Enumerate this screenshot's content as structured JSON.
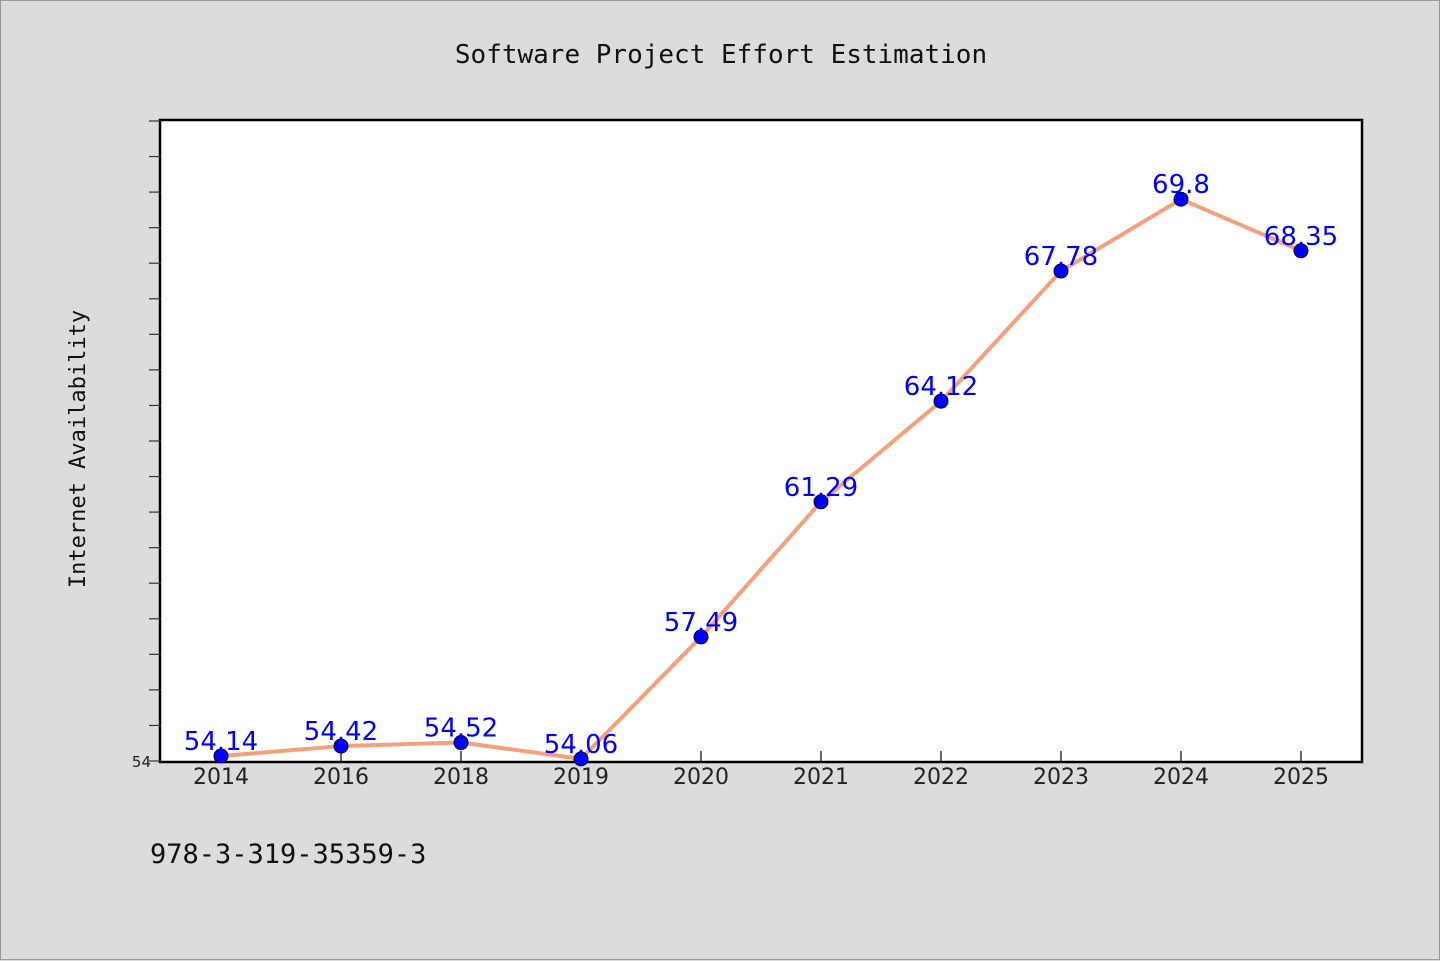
{
  "chart_data": {
    "type": "line",
    "title": "Software Project Effort Estimation",
    "xlabel": "",
    "ylabel": "Internet Availability",
    "categories": [
      "2014",
      "2016",
      "2018",
      "2019",
      "2020",
      "2021",
      "2022",
      "2023",
      "2024",
      "2025"
    ],
    "series": [
      {
        "values": [
          54.14,
          54.42,
          54.52,
          54.06,
          57.49,
          61.29,
          64.12,
          67.78,
          69.8,
          68.35
        ],
        "data_labels": [
          "54.14",
          "54.42",
          "54.52",
          "54.06",
          "57.49",
          "61.29",
          "64.12",
          "67.78",
          "69.8",
          "68.35"
        ]
      }
    ],
    "ylim": [
      54,
      72
    ],
    "ytick_labels": [
      "54"
    ],
    "grid": false,
    "legend": "none",
    "line_color": "#f4a07c",
    "marker_color": "#0000ff",
    "label_color": "#0000ff",
    "plot_background": "#ffffff",
    "figure_background": "#dcdcdc"
  },
  "footnote": "978-3-319-35359-3"
}
